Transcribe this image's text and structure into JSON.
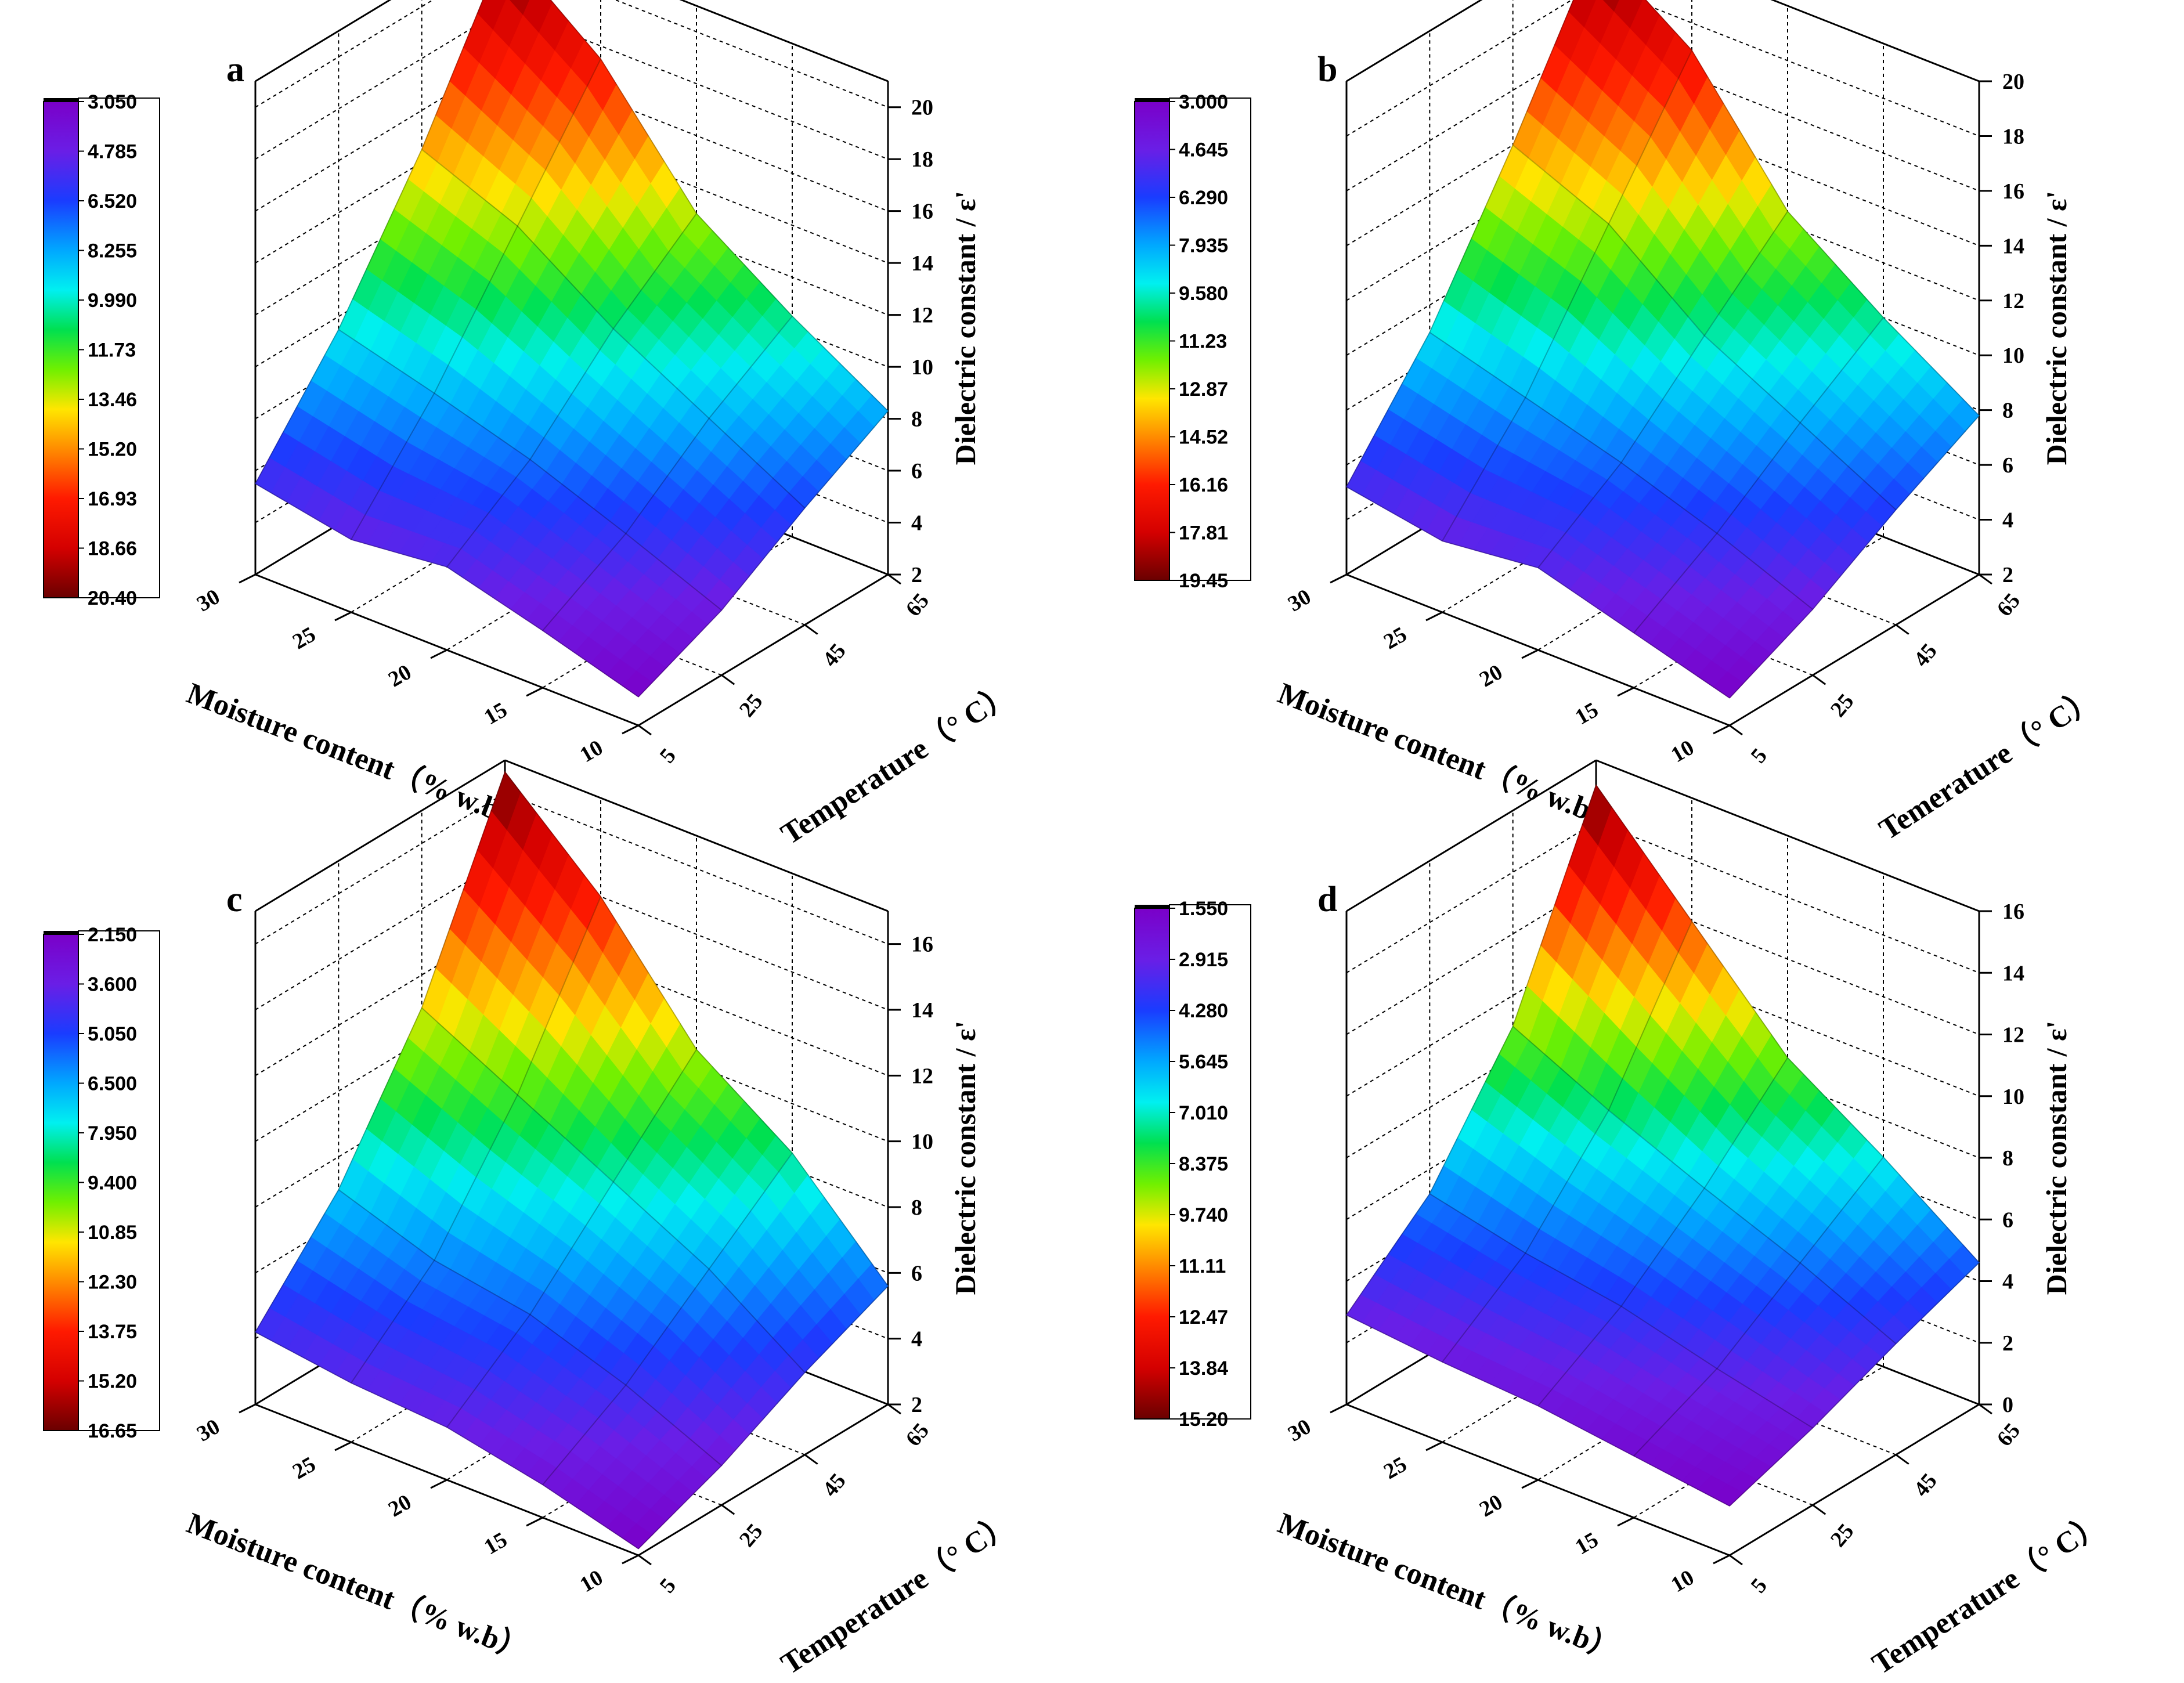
{
  "chart_data": [
    {
      "panel_label": "a",
      "type": "surface3d",
      "xlabel": "Moisture content（% w.b）",
      "ylabel": "Temperature（° C）",
      "zlabel": "Dielectric constant / ε'",
      "moisture_ticks": [
        "30",
        "25",
        "20",
        "15",
        "10"
      ],
      "temperature_ticks": [
        "5",
        "25",
        "45",
        "65"
      ],
      "z_ticks": [
        "2",
        "4",
        "6",
        "8",
        "10",
        "12",
        "14",
        "16",
        "18",
        "20"
      ],
      "zlim": [
        2,
        21
      ],
      "colorbar_ticks": [
        "3.050",
        "4.785",
        "6.520",
        "8.255",
        "9.990",
        "11.73",
        "13.46",
        "15.20",
        "16.93",
        "18.66",
        "20.40"
      ],
      "colorbar_range": [
        3.05,
        20.4
      ],
      "moisture": [
        10,
        15,
        20,
        25,
        30
      ],
      "temperature": [
        5,
        25,
        45,
        65
      ],
      "z": [
        [
          3.1,
          4.5,
          6.5,
          8.3
        ],
        [
          4.2,
          6.0,
          8.5,
          10.5
        ],
        [
          5.2,
          7.4,
          10.5,
          13.0
        ],
        [
          4.8,
          8.5,
          13.0,
          17.5
        ],
        [
          5.5,
          9.5,
          14.5,
          20.4
        ]
      ]
    },
    {
      "panel_label": "b",
      "type": "surface3d",
      "xlabel": "Moisture content（% w.b）",
      "ylabel": "Temerature（° C）",
      "zlabel": "Dielectric constant / ε'",
      "moisture_ticks": [
        "30",
        "25",
        "20",
        "15",
        "10"
      ],
      "temperature_ticks": [
        "5",
        "25",
        "45",
        "65"
      ],
      "z_ticks": [
        "2",
        "4",
        "6",
        "8",
        "10",
        "12",
        "14",
        "16",
        "18",
        "20"
      ],
      "zlim": [
        2,
        20
      ],
      "colorbar_ticks": [
        "3.000",
        "4.645",
        "6.290",
        "7.935",
        "9.580",
        "11.23",
        "12.87",
        "14.52",
        "16.16",
        "17.81",
        "19.45"
      ],
      "colorbar_range": [
        3.0,
        19.45
      ],
      "moisture": [
        10,
        15,
        20,
        25,
        30
      ],
      "temperature": [
        5,
        25,
        45,
        65
      ],
      "z": [
        [
          3.0,
          4.4,
          6.2,
          7.8
        ],
        [
          4.0,
          5.8,
          8.0,
          10.0
        ],
        [
          5.0,
          7.0,
          9.8,
          12.5
        ],
        [
          4.6,
          8.0,
          12.5,
          17.0
        ],
        [
          5.2,
          9.0,
          14.0,
          19.45
        ]
      ]
    },
    {
      "panel_label": "c",
      "type": "surface3d",
      "xlabel": "Moisture content（% w.b）",
      "ylabel": "Temperature（° C）",
      "zlabel": "Dielectric constant / ε'",
      "moisture_ticks": [
        "30",
        "25",
        "20",
        "15",
        "10"
      ],
      "temperature_ticks": [
        "5",
        "25",
        "45",
        "65"
      ],
      "z_ticks": [
        "2",
        "4",
        "6",
        "8",
        "10",
        "12",
        "14",
        "16"
      ],
      "zlim": [
        2,
        17
      ],
      "colorbar_ticks": [
        "2.150",
        "3.600",
        "5.050",
        "6.500",
        "7.950",
        "9.400",
        "10.85",
        "12.30",
        "13.75",
        "15.20",
        "16.65"
      ],
      "colorbar_range": [
        2.15,
        16.65
      ],
      "moisture": [
        10,
        15,
        20,
        25,
        30
      ],
      "temperature": [
        5,
        25,
        45,
        65
      ],
      "z": [
        [
          2.2,
          3.2,
          4.5,
          5.6
        ],
        [
          3.0,
          4.5,
          6.5,
          8.5
        ],
        [
          3.6,
          5.5,
          8.0,
          10.5
        ],
        [
          3.8,
          6.0,
          9.5,
          14.0
        ],
        [
          4.2,
          7.0,
          11.0,
          16.65
        ]
      ]
    },
    {
      "panel_label": "d",
      "type": "surface3d",
      "xlabel": "Moisture content（% w.b）",
      "ylabel": "Temperature（° C）",
      "zlabel": "Dielectric constant / ε'",
      "moisture_ticks": [
        "30",
        "25",
        "20",
        "15",
        "10"
      ],
      "temperature_ticks": [
        "5",
        "25",
        "45",
        "65"
      ],
      "z_ticks": [
        "0",
        "2",
        "4",
        "6",
        "8",
        "10",
        "12",
        "14",
        "16"
      ],
      "zlim": [
        0,
        16
      ],
      "colorbar_ticks": [
        "1.550",
        "2.915",
        "4.280",
        "5.645",
        "7.010",
        "8.375",
        "9.740",
        "11.11",
        "12.47",
        "13.84",
        "15.20"
      ],
      "colorbar_range": [
        1.55,
        15.2
      ],
      "moisture": [
        10,
        15,
        20,
        25,
        30
      ],
      "temperature": [
        5,
        25,
        45,
        65
      ],
      "z": [
        [
          1.6,
          2.5,
          3.6,
          4.6
        ],
        [
          2.0,
          3.2,
          5.0,
          6.8
        ],
        [
          2.4,
          4.0,
          6.2,
          8.8
        ],
        [
          2.6,
          4.5,
          7.5,
          12.0
        ],
        [
          2.9,
          5.2,
          9.0,
          15.2
        ]
      ]
    }
  ]
}
